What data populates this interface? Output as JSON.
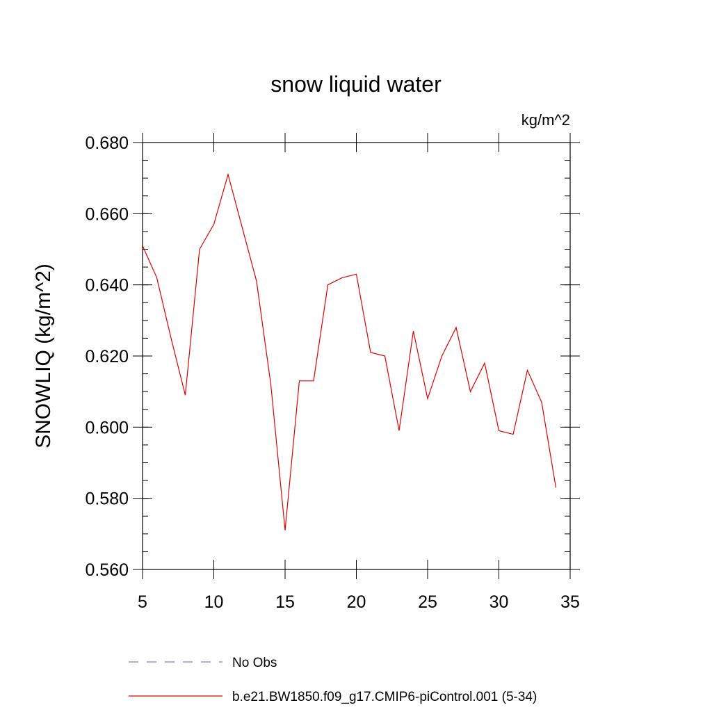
{
  "chart_data": {
    "type": "line",
    "title": "snow liquid water",
    "units_label": "kg/m^2",
    "xlabel": "",
    "ylabel": "SNOWLIQ  (kg/m^2)",
    "xlim": [
      5,
      35
    ],
    "ylim": [
      0.56,
      0.68
    ],
    "x_ticks": [
      5,
      10,
      15,
      20,
      25,
      30,
      35
    ],
    "x_tick_labels": [
      "5",
      "10",
      "15",
      "20",
      "25",
      "30",
      "35"
    ],
    "y_ticks": [
      0.56,
      0.58,
      0.6,
      0.62,
      0.64,
      0.66,
      0.68
    ],
    "y_tick_labels": [
      "0.560",
      "0.580",
      "0.600",
      "0.620",
      "0.640",
      "0.660",
      "0.680"
    ],
    "grid": false,
    "legend_position": "bottom",
    "series": [
      {
        "name": "No Obs",
        "color": "#8080d0",
        "dash": "dashed",
        "x": [],
        "values": []
      },
      {
        "name": "b.e21.BW1850.f09_g17.CMIP6-piControl.001 (5-34)",
        "color": "#e00000",
        "dash": "solid",
        "x": [
          5,
          6,
          7,
          8,
          9,
          10,
          11,
          12,
          13,
          14,
          15,
          16,
          17,
          18,
          19,
          20,
          21,
          22,
          23,
          24,
          25,
          26,
          27,
          28,
          29,
          30,
          31,
          32,
          33,
          34
        ],
        "values": [
          0.651,
          0.642,
          0.625,
          0.609,
          0.65,
          0.657,
          0.671,
          0.656,
          0.641,
          0.612,
          0.571,
          0.613,
          0.613,
          0.64,
          0.642,
          0.643,
          0.621,
          0.62,
          0.599,
          0.627,
          0.608,
          0.62,
          0.628,
          0.61,
          0.618,
          0.599,
          0.598,
          0.616,
          0.607,
          0.583
        ]
      }
    ]
  }
}
